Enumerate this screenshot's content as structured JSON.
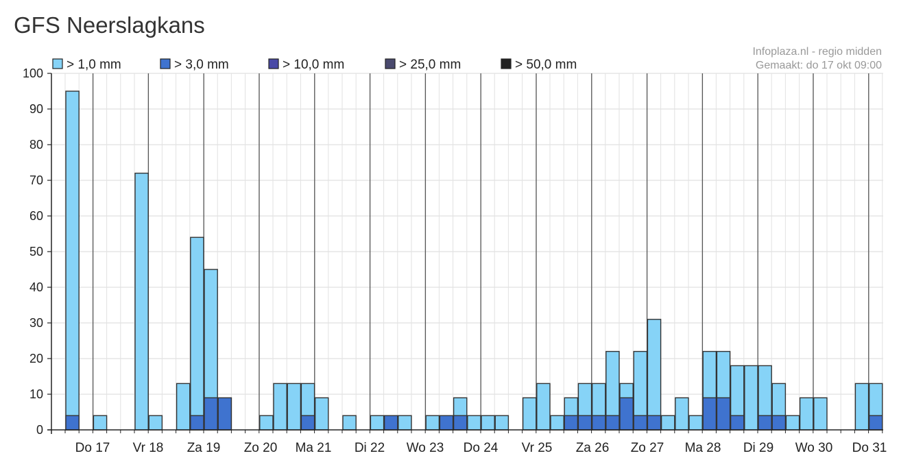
{
  "page": {
    "title": "GFS Neerslagkans"
  },
  "legend": [
    {
      "label": "> 1,0 mm",
      "color": "#86d3f7"
    },
    {
      "label": "> 3,0 mm",
      "color": "#3f73cf"
    },
    {
      "label": "> 10,0 mm",
      "color": "#4a4aa6"
    },
    {
      "label": "> 25,0 mm",
      "color": "#4a4a6e"
    },
    {
      "label": "> 50,0 mm",
      "color": "#222222"
    }
  ],
  "source": {
    "line1": "Infoplaza.nl - regio midden",
    "line2": "Gemaakt: do 17 okt 09:00"
  },
  "chart_data": {
    "type": "bar",
    "stacked_overlap": true,
    "ylim": [
      0,
      100
    ],
    "yticks": [
      0,
      10,
      20,
      30,
      40,
      50,
      60,
      70,
      80,
      90,
      100
    ],
    "grid": true,
    "legend_position": "top-left",
    "day_labels": [
      "Do 17",
      "Vr 18",
      "Za 19",
      "Zo 20",
      "Ma 21",
      "Di 22",
      "Wo 23",
      "Do 24",
      "Vr 25",
      "Za 26",
      "Zo 27",
      "Ma 28",
      "Di 29",
      "Wo 30",
      "Do 31"
    ],
    "series": [
      {
        "name": "> 1,0 mm",
        "values": [
          95,
          0,
          4,
          0,
          0,
          72,
          4,
          0,
          13,
          54,
          45,
          9,
          0,
          0,
          4,
          13,
          13,
          13,
          9,
          0,
          4,
          0,
          4,
          4,
          4,
          0,
          4,
          4,
          9,
          4,
          4,
          4,
          0,
          9,
          13,
          4,
          9,
          13,
          13,
          22,
          13,
          22,
          31,
          4,
          9,
          4,
          22,
          22,
          18,
          18,
          18,
          13,
          4,
          9,
          9,
          0,
          0,
          13,
          13
        ]
      },
      {
        "name": "> 3,0 mm",
        "values": [
          4,
          0,
          0,
          0,
          0,
          0,
          0,
          0,
          0,
          4,
          9,
          9,
          0,
          0,
          0,
          0,
          0,
          4,
          0,
          0,
          0,
          0,
          0,
          4,
          0,
          0,
          0,
          4,
          4,
          0,
          0,
          0,
          0,
          0,
          0,
          0,
          4,
          4,
          4,
          4,
          9,
          4,
          4,
          0,
          0,
          0,
          9,
          9,
          4,
          0,
          4,
          4,
          0,
          0,
          0,
          0,
          0,
          0,
          4
        ]
      },
      {
        "name": "> 10,0 mm",
        "values": []
      },
      {
        "name": "> 25,0 mm",
        "values": []
      },
      {
        "name": "> 50,0 mm",
        "values": []
      }
    ]
  }
}
